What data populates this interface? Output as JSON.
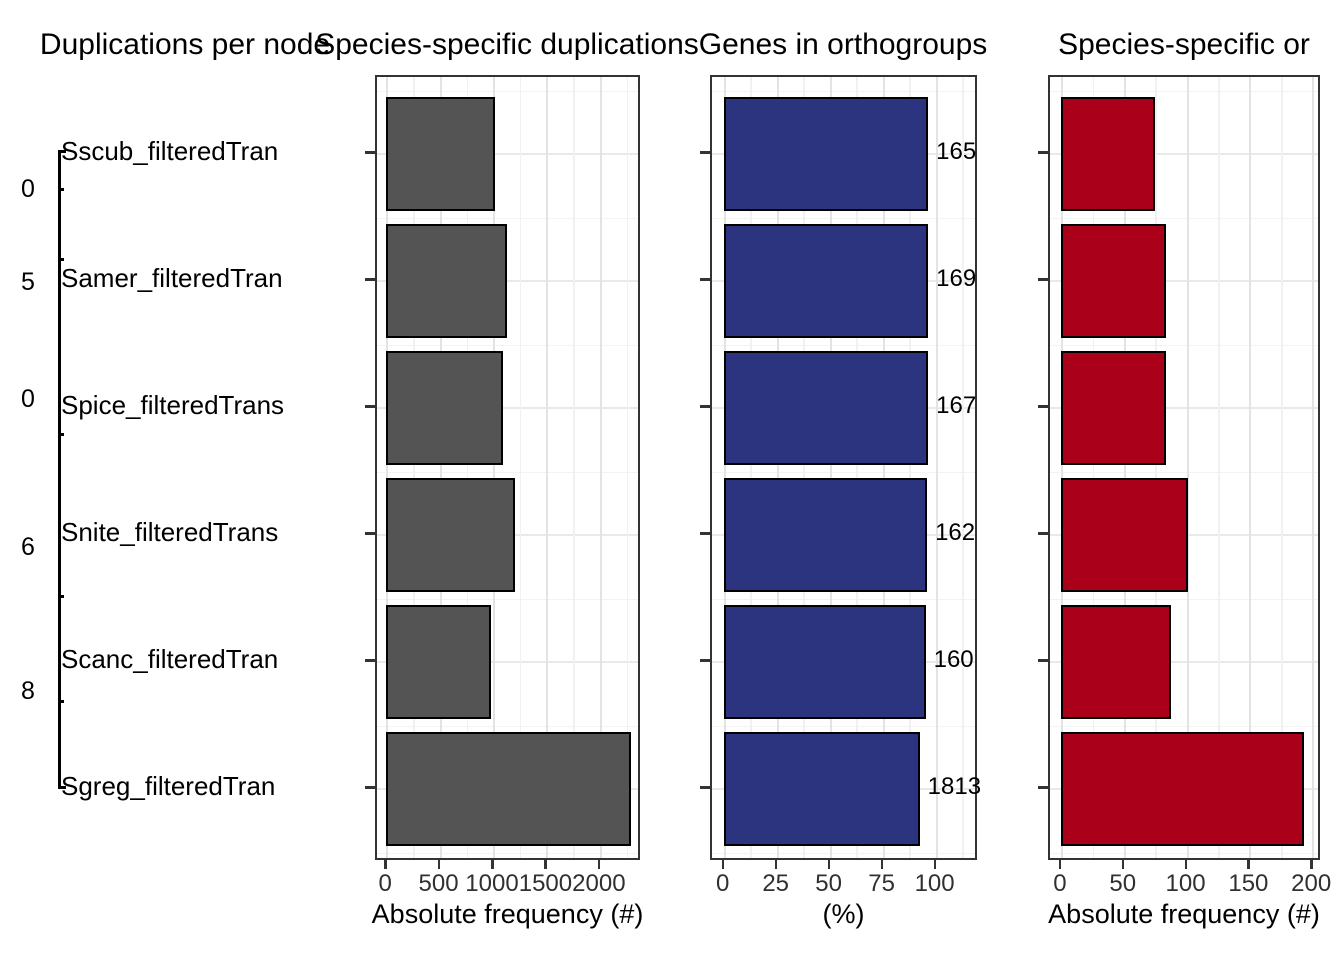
{
  "tree": {
    "title": "Duplications per node",
    "tip_labels": [
      "Sscub_filteredTran",
      "Samer_filteredTran",
      "Spice_filteredTrans",
      "Snite_filteredTrans",
      "Scanc_filteredTran",
      "Sgreg_filteredTran"
    ],
    "node_labels": [
      "0",
      "5",
      "0",
      "6",
      "8"
    ]
  },
  "chart_data": [
    {
      "type": "bar",
      "title": "Species-specific duplications",
      "orientation": "horizontal",
      "categories": [
        "Sscub_filteredTran",
        "Samer_filteredTran",
        "Spice_filteredTrans",
        "Snite_filteredTrans",
        "Scanc_filteredTran",
        "Sgreg_filteredTran"
      ],
      "values": [
        1010,
        1120,
        1085,
        1195,
        970,
        2280
      ],
      "xlabel": "Absolute frequency (#)",
      "xticks": [
        0,
        500,
        1000,
        1500,
        2000
      ],
      "xlim": [
        -95,
        2385
      ],
      "bar_color": "#545454",
      "bar_stroke": "#000000",
      "grid": true
    },
    {
      "type": "bar",
      "title": "Genes in orthogroups",
      "orientation": "horizontal",
      "categories": [
        "Sscub_filteredTran",
        "Samer_filteredTran",
        "Spice_filteredTrans",
        "Snite_filteredTrans",
        "Scanc_filteredTran",
        "Sgreg_filteredTran"
      ],
      "values": [
        96,
        96,
        96,
        95.5,
        94.8,
        92
      ],
      "bar_labels": [
        "165",
        "169",
        "167",
        "162",
        "160",
        "1813"
      ],
      "xlabel": "(%)",
      "xticks": [
        0,
        25,
        50,
        75,
        100
      ],
      "xlim": [
        -6,
        120
      ],
      "bar_color": "#2C3480",
      "bar_stroke": "#000000",
      "grid": true
    },
    {
      "type": "bar",
      "title": "Species-specific or",
      "orientation": "horizontal",
      "categories": [
        "Sscub_filteredTran",
        "Samer_filteredTran",
        "Spice_filteredTrans",
        "Snite_filteredTrans",
        "Scanc_filteredTran",
        "Sgreg_filteredTran"
      ],
      "values": [
        74,
        83,
        83,
        100,
        87,
        193
      ],
      "xlabel": "Absolute frequency (#)",
      "xticks": [
        0,
        50,
        100,
        150,
        200
      ],
      "xlim": [
        -9.5,
        207
      ],
      "bar_color": "#AB0019",
      "bar_stroke": "#000000",
      "grid": true
    }
  ]
}
